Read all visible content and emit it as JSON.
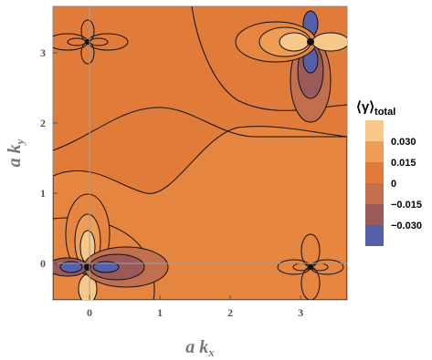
{
  "chart_data": {
    "type": "contour",
    "title": "",
    "xlabel": "a k_x",
    "ylabel": "a k_y",
    "xlim": [
      -0.52,
      3.66
    ],
    "ylim": [
      -0.52,
      3.66
    ],
    "x_ticks": [
      "0",
      "1",
      "2",
      "3"
    ],
    "y_ticks": [
      "0",
      "1",
      "2",
      "3"
    ],
    "x_tick_values": [
      0,
      1,
      2,
      3
    ],
    "y_tick_values": [
      0,
      1,
      2,
      3
    ],
    "legend": {
      "title_main": "⟨γ⟩",
      "title_sub": "total",
      "placement": "right",
      "levels": [
        {
          "label": "0.030",
          "value": 0.03,
          "color": "#f6c98b"
        },
        {
          "label": "0.015",
          "value": 0.015,
          "color": "#ef9d54"
        },
        {
          "label": "0",
          "value": 0,
          "color": "#e07b3a"
        },
        {
          "label": "−0.015",
          "value": -0.015,
          "color": "#c16f4d"
        },
        {
          "label": "−0.030",
          "value": -0.03,
          "color": "#9a5a5a"
        }
      ],
      "extra_colors": [
        "#5560a8"
      ]
    },
    "features": [
      {
        "name": "bottom-left",
        "x": 0,
        "y": 0,
        "lobes_x": "negative",
        "lobes_y": "positive"
      },
      {
        "name": "top-right",
        "x": 3.14,
        "y": 3.14,
        "lobes_x": "positive",
        "lobes_y": "negative"
      },
      {
        "name": "top-left",
        "x": 0,
        "y": 3.14
      },
      {
        "name": "bottom-right",
        "x": 3.14,
        "y": 0
      }
    ],
    "grid": "crosshair-at-zero"
  }
}
